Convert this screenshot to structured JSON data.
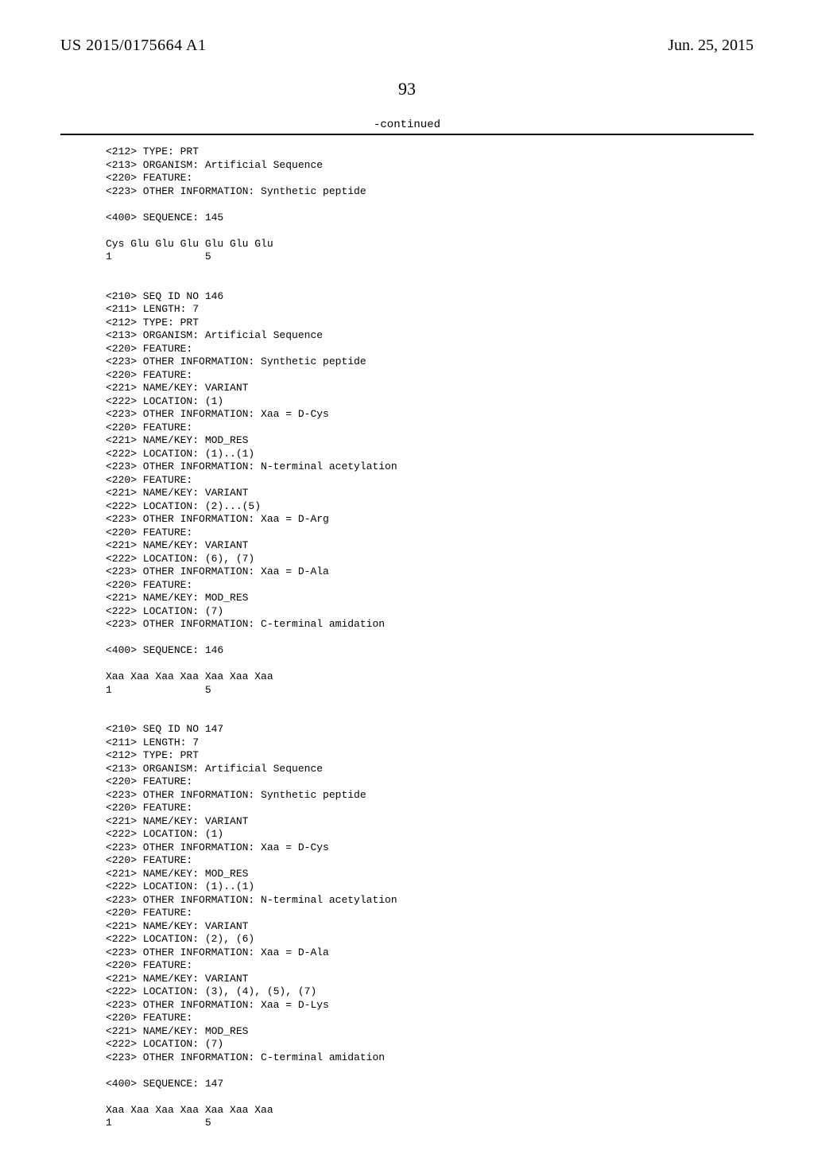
{
  "header": {
    "publication_number": "US 2015/0175664 A1",
    "publication_date": "Jun. 25, 2015"
  },
  "page_number": "93",
  "continued_label": "-continued",
  "sequence_listing": "<212> TYPE: PRT\n<213> ORGANISM: Artificial Sequence\n<220> FEATURE:\n<223> OTHER INFORMATION: Synthetic peptide\n\n<400> SEQUENCE: 145\n\nCys Glu Glu Glu Glu Glu Glu\n1               5\n\n\n<210> SEQ ID NO 146\n<211> LENGTH: 7\n<212> TYPE: PRT\n<213> ORGANISM: Artificial Sequence\n<220> FEATURE:\n<223> OTHER INFORMATION: Synthetic peptide\n<220> FEATURE:\n<221> NAME/KEY: VARIANT\n<222> LOCATION: (1)\n<223> OTHER INFORMATION: Xaa = D-Cys\n<220> FEATURE:\n<221> NAME/KEY: MOD_RES\n<222> LOCATION: (1)..(1)\n<223> OTHER INFORMATION: N-terminal acetylation\n<220> FEATURE:\n<221> NAME/KEY: VARIANT\n<222> LOCATION: (2)...(5)\n<223> OTHER INFORMATION: Xaa = D-Arg\n<220> FEATURE:\n<221> NAME/KEY: VARIANT\n<222> LOCATION: (6), (7)\n<223> OTHER INFORMATION: Xaa = D-Ala\n<220> FEATURE:\n<221> NAME/KEY: MOD_RES\n<222> LOCATION: (7)\n<223> OTHER INFORMATION: C-terminal amidation\n\n<400> SEQUENCE: 146\n\nXaa Xaa Xaa Xaa Xaa Xaa Xaa\n1               5\n\n\n<210> SEQ ID NO 147\n<211> LENGTH: 7\n<212> TYPE: PRT\n<213> ORGANISM: Artificial Sequence\n<220> FEATURE:\n<223> OTHER INFORMATION: Synthetic peptide\n<220> FEATURE:\n<221> NAME/KEY: VARIANT\n<222> LOCATION: (1)\n<223> OTHER INFORMATION: Xaa = D-Cys\n<220> FEATURE:\n<221> NAME/KEY: MOD_RES\n<222> LOCATION: (1)..(1)\n<223> OTHER INFORMATION: N-terminal acetylation\n<220> FEATURE:\n<221> NAME/KEY: VARIANT\n<222> LOCATION: (2), (6)\n<223> OTHER INFORMATION: Xaa = D-Ala\n<220> FEATURE:\n<221> NAME/KEY: VARIANT\n<222> LOCATION: (3), (4), (5), (7)\n<223> OTHER INFORMATION: Xaa = D-Lys\n<220> FEATURE:\n<221> NAME/KEY: MOD_RES\n<222> LOCATION: (7)\n<223> OTHER INFORMATION: C-terminal amidation\n\n<400> SEQUENCE: 147\n\nXaa Xaa Xaa Xaa Xaa Xaa Xaa\n1               5"
}
